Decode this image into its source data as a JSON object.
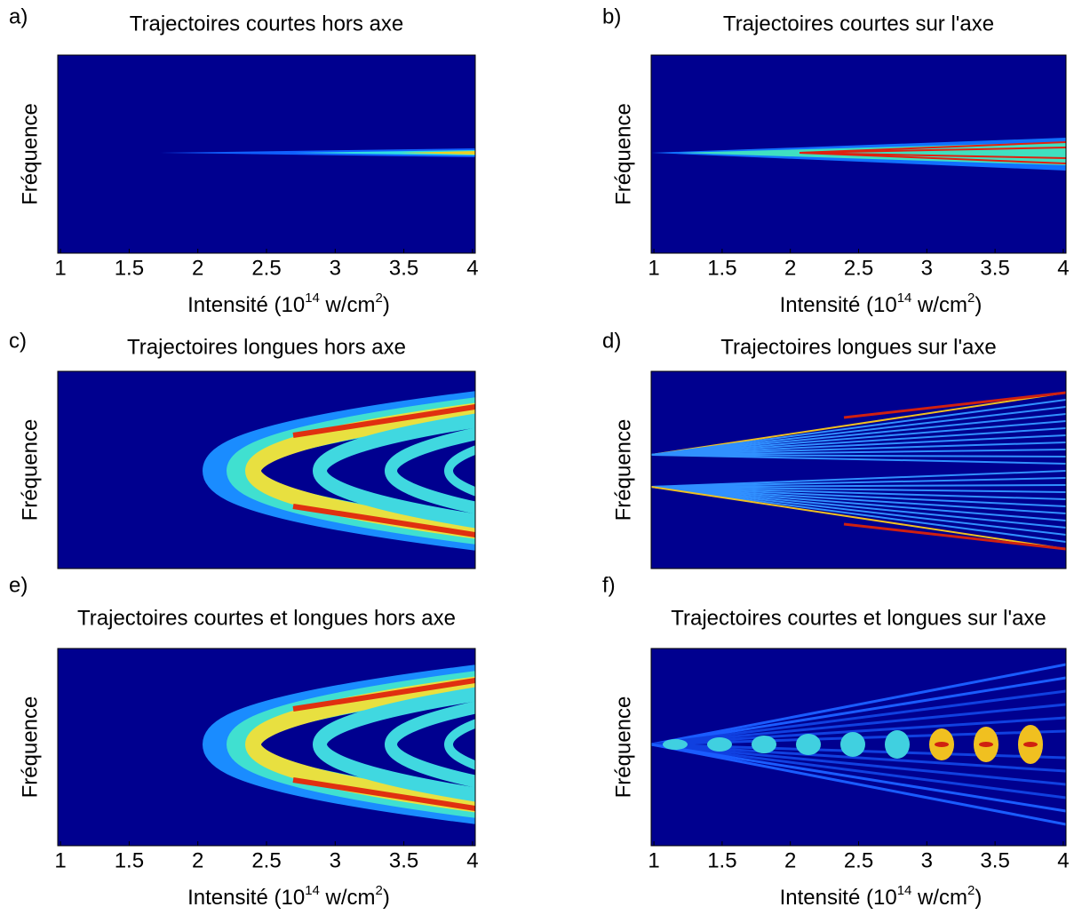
{
  "chart_data": [
    {
      "type": "heatmap",
      "label": "a)",
      "title": "Trajectoires courtes hors axe",
      "ylabel": "Fréquence",
      "xlim": [
        0.98,
        4.02
      ],
      "xticks": [
        1,
        1.5,
        2,
        2.5,
        3,
        3.5,
        4
      ],
      "xlabel": [
        "Intensité (10",
        "14",
        " w/cm",
        "2",
        ")"
      ]
    },
    {
      "type": "heatmap",
      "label": "b)",
      "title": "Trajectoires courtes sur l'axe",
      "ylabel": "Fréquence",
      "xlim": [
        0.98,
        4.02
      ],
      "xticks": [
        1,
        1.5,
        2,
        2.5,
        3,
        3.5,
        4
      ],
      "xlabel": [
        "Intensité (10",
        "14",
        " w/cm",
        "2",
        ")"
      ]
    },
    {
      "type": "heatmap",
      "label": "c)",
      "title": "Trajectoires longues hors axe",
      "ylabel": "Fréquence"
    },
    {
      "type": "heatmap",
      "label": "d)",
      "title": "Trajectoires longues sur l'axe",
      "ylabel": "Fréquence"
    },
    {
      "type": "heatmap",
      "label": "e)",
      "title": "Trajectoires courtes et longues hors axe",
      "ylabel": "Fréquence",
      "xlim": [
        0.98,
        4.02
      ],
      "xticks": [
        1,
        1.5,
        2,
        2.5,
        3,
        3.5,
        4
      ],
      "xlabel": [
        "Intensité (10",
        "14",
        " w/cm",
        "2",
        ")"
      ]
    },
    {
      "type": "heatmap",
      "label": "f)",
      "title": "Trajectoires courtes et longues sur l'axe",
      "ylabel": "Fréquence",
      "xlim": [
        0.98,
        4.02
      ],
      "xticks": [
        1,
        1.5,
        2,
        2.5,
        3,
        3.5,
        4
      ],
      "xlabel": [
        "Intensité (10",
        "14",
        " w/cm",
        "2",
        ")"
      ]
    }
  ]
}
